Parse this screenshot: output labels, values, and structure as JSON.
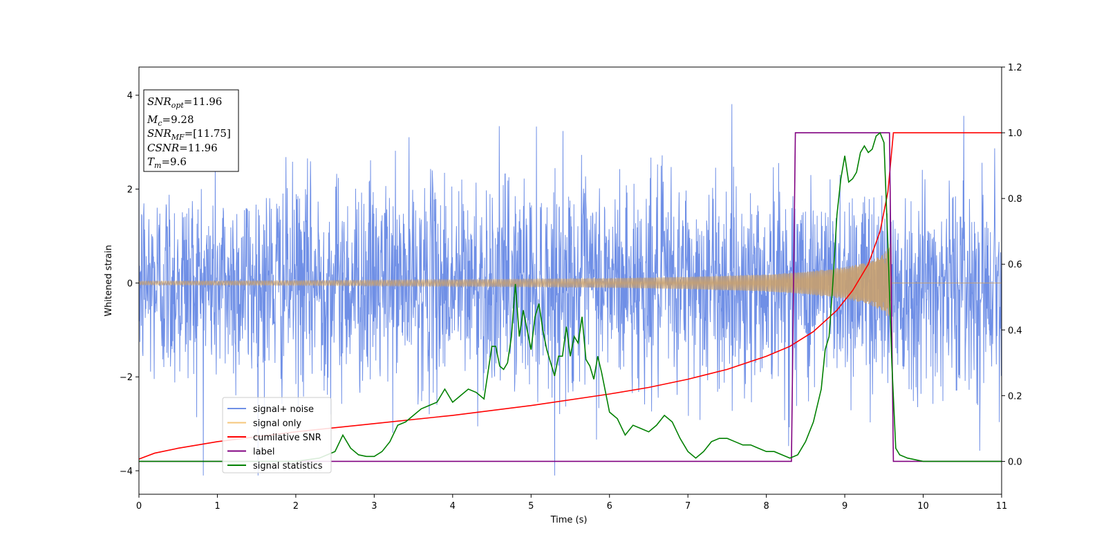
{
  "chart_data": {
    "type": "line",
    "xlabel": "Time (s)",
    "ylabel": "Whitened strain",
    "xlim": [
      0,
      11
    ],
    "ylim": [
      -4.5,
      4.6
    ],
    "y2lim": [
      -0.1,
      1.2
    ],
    "x_ticks": [
      "0",
      "1",
      "2",
      "3",
      "4",
      "5",
      "6",
      "7",
      "8",
      "9",
      "10",
      "11"
    ],
    "y_ticks": [
      "4",
      "2",
      "0",
      "−2",
      "−4"
    ],
    "y_tick_values": [
      4,
      2,
      0,
      -2,
      -4
    ],
    "y2_ticks": [
      "1.2",
      "1.0",
      "0.8",
      "0.6",
      "0.4",
      "0.2",
      "0.0"
    ],
    "y2_tick_values": [
      1.2,
      1.0,
      0.8,
      0.6,
      0.4,
      0.2,
      0.0
    ],
    "info_box": {
      "snr_opt": {
        "base": "SNR",
        "sub": "opt",
        "value": "=11.96"
      },
      "mc": {
        "base": "M",
        "sub": "c",
        "value": "=9.28"
      },
      "snr_mf": {
        "base": "SNR",
        "sub": "MF",
        "value": "=[11.75]"
      },
      "csnr": {
        "base": "CSNR",
        "sub": "",
        "value": "=11.96"
      },
      "tm": {
        "base": "T",
        "sub": "m",
        "value": "=9.6"
      }
    },
    "legend": {
      "placement": "lower-left",
      "entries": [
        {
          "label": "signal+ noise",
          "color": "#6f8fe6"
        },
        {
          "label": "signal only",
          "color": "#f5c67a"
        },
        {
          "label": "cumilative SNR",
          "color": "#ff0000"
        },
        {
          "label": "label",
          "color": "#800080"
        },
        {
          "label": "signal statistics",
          "color": "#008000"
        }
      ]
    },
    "series": [
      {
        "name": "signal+ noise",
        "axis": "left",
        "color": "#6f8fe6",
        "description_values": {
          "x_range": [
            0,
            11
          ],
          "amplitude_approx": 3.0,
          "min": -4.1,
          "max": 4.2
        }
      },
      {
        "name": "signal only",
        "axis": "left",
        "color": "#c8a06e",
        "envelope": {
          "x": [
            0,
            2,
            4,
            6,
            7,
            8,
            8.5,
            9,
            9.3,
            9.5,
            9.58,
            9.6,
            11
          ],
          "amp": [
            0.04,
            0.05,
            0.07,
            0.1,
            0.13,
            0.18,
            0.24,
            0.34,
            0.45,
            0.62,
            0.85,
            0.0,
            0.0
          ]
        }
      },
      {
        "name": "cumilative SNR",
        "axis": "right",
        "color": "#ff0000",
        "x": [
          0,
          0.2,
          0.5,
          1,
          2,
          3,
          4,
          5,
          6,
          6.5,
          7,
          7.5,
          8,
          8.3,
          8.6,
          8.9,
          9.1,
          9.3,
          9.45,
          9.55,
          9.62,
          11
        ],
        "y": [
          0.007,
          0.025,
          0.04,
          0.06,
          0.09,
          0.115,
          0.14,
          0.17,
          0.205,
          0.225,
          0.25,
          0.28,
          0.32,
          0.35,
          0.395,
          0.46,
          0.52,
          0.6,
          0.7,
          0.82,
          1.0,
          1.0
        ]
      },
      {
        "name": "label",
        "axis": "right",
        "color": "#800080",
        "x": [
          0,
          8.32,
          8.37,
          9.57,
          9.62,
          11
        ],
        "y": [
          0,
          0,
          1,
          1,
          0,
          0
        ]
      },
      {
        "name": "signal statistics",
        "axis": "right",
        "color": "#008000",
        "x": [
          0,
          0.5,
          1,
          1.5,
          2,
          2.3,
          2.5,
          2.6,
          2.7,
          2.8,
          2.9,
          3.0,
          3.1,
          3.2,
          3.3,
          3.4,
          3.5,
          3.6,
          3.7,
          3.8,
          3.85,
          3.9,
          4.0,
          4.1,
          4.2,
          4.3,
          4.4,
          4.5,
          4.55,
          4.6,
          4.65,
          4.7,
          4.75,
          4.8,
          4.85,
          4.9,
          4.95,
          5.0,
          5.05,
          5.1,
          5.15,
          5.2,
          5.25,
          5.3,
          5.35,
          5.4,
          5.45,
          5.5,
          5.55,
          5.6,
          5.65,
          5.7,
          5.75,
          5.8,
          5.85,
          5.9,
          6.0,
          6.1,
          6.2,
          6.3,
          6.4,
          6.5,
          6.6,
          6.7,
          6.8,
          6.9,
          7.0,
          7.1,
          7.2,
          7.3,
          7.4,
          7.5,
          7.6,
          7.7,
          7.8,
          7.9,
          8.0,
          8.1,
          8.2,
          8.3,
          8.4,
          8.5,
          8.6,
          8.7,
          8.75,
          8.8,
          8.85,
          8.9,
          8.95,
          9.0,
          9.05,
          9.1,
          9.15,
          9.2,
          9.25,
          9.3,
          9.35,
          9.4,
          9.45,
          9.5,
          9.55,
          9.6,
          9.65,
          9.7,
          9.8,
          10.0,
          11.0
        ],
        "y": [
          0.0,
          0.0,
          0.0,
          0.0,
          0.0,
          0.01,
          0.03,
          0.08,
          0.04,
          0.02,
          0.015,
          0.015,
          0.03,
          0.06,
          0.11,
          0.12,
          0.14,
          0.16,
          0.17,
          0.18,
          0.2,
          0.22,
          0.18,
          0.2,
          0.22,
          0.21,
          0.19,
          0.35,
          0.35,
          0.29,
          0.28,
          0.3,
          0.38,
          0.54,
          0.38,
          0.46,
          0.4,
          0.34,
          0.44,
          0.48,
          0.4,
          0.34,
          0.3,
          0.26,
          0.32,
          0.32,
          0.41,
          0.32,
          0.38,
          0.36,
          0.44,
          0.31,
          0.29,
          0.25,
          0.32,
          0.27,
          0.15,
          0.13,
          0.08,
          0.11,
          0.1,
          0.09,
          0.11,
          0.14,
          0.12,
          0.07,
          0.03,
          0.01,
          0.03,
          0.06,
          0.07,
          0.07,
          0.06,
          0.05,
          0.05,
          0.04,
          0.03,
          0.03,
          0.02,
          0.01,
          0.02,
          0.06,
          0.12,
          0.22,
          0.34,
          0.38,
          0.55,
          0.75,
          0.86,
          0.93,
          0.85,
          0.86,
          0.88,
          0.94,
          0.96,
          0.94,
          0.95,
          0.99,
          1.0,
          0.97,
          0.66,
          0.3,
          0.04,
          0.02,
          0.01,
          0.0,
          0.0
        ]
      }
    ]
  }
}
